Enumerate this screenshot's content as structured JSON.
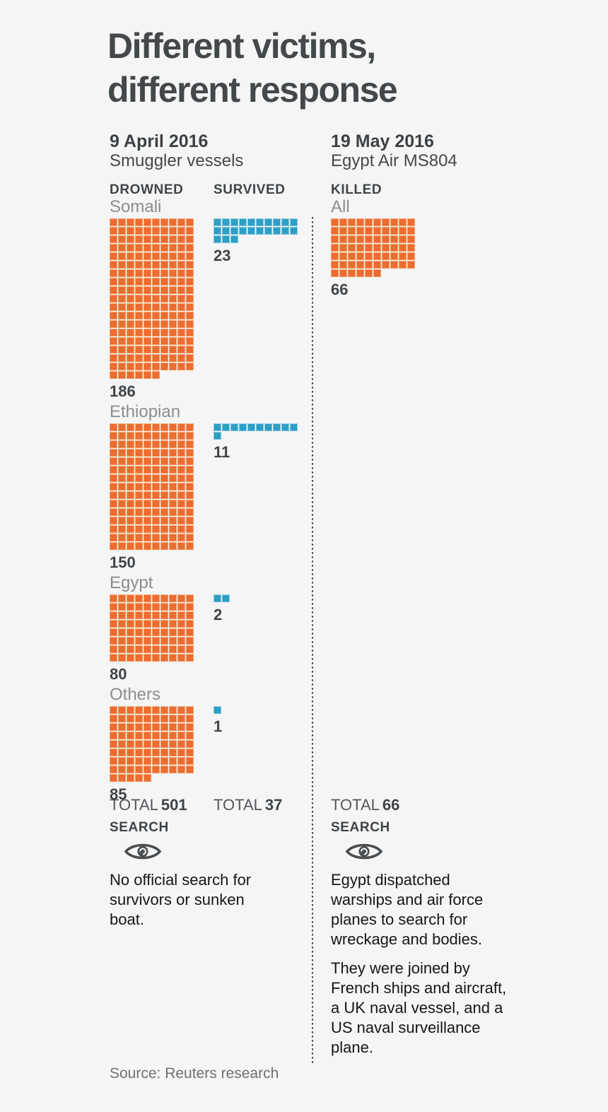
{
  "title": {
    "line1": "Different victims,",
    "line2": "different response"
  },
  "left_column": {
    "date": "9 April 2016",
    "subtitle": "Smuggler vessels"
  },
  "right_column": {
    "date": "19 May 2016",
    "subtitle": "Egypt Air MS804"
  },
  "headers": {
    "drowned": "DROWNED",
    "survived": "SURVIVED",
    "killed": "KILLED"
  },
  "groups": [
    {
      "label": "Somali",
      "drowned": 186,
      "survived": 23
    },
    {
      "label": "Ethiopian",
      "drowned": 150,
      "survived": 11
    },
    {
      "label": "Egypt",
      "drowned": 80,
      "survived": 2
    },
    {
      "label": "Others",
      "drowned": 85,
      "survived": 1
    }
  ],
  "right_group": {
    "label": "All",
    "killed": 66
  },
  "totals": {
    "label": "TOTAL",
    "drowned": "501",
    "survived": "37",
    "killed": "66"
  },
  "search": {
    "heading": "SEARCH",
    "icon": "eye-icon",
    "left_text": "No official search for survivors or sunken boat.",
    "right_paragraphs": [
      "Egypt dispatched warships and air force planes to search for wreckage and bodies.",
      "They were joined by French ships and aircraft, a UK naval vessel, and a US naval surveillance plane."
    ]
  },
  "source": "Source: Reuters research",
  "colors": {
    "drowned_fill": "#ED6C2F",
    "drowned_border": "#F29E69",
    "survived_fill": "#2D9FC6",
    "survived_border": "#82C6DE",
    "killed_fill": "#ED6C2F",
    "killed_border": "#F29E69",
    "text_dark": "#3F4447",
    "label_gray": "#8B8E90",
    "background": "#F5F5F6"
  },
  "chart_data": {
    "type": "waffle",
    "unit_value": 1,
    "columns_per_row": 10,
    "title": "Different victims, different response",
    "panels": [
      {
        "event_date": "9 April 2016",
        "event": "Smuggler vessels",
        "categories": [
          "Somali",
          "Ethiopian",
          "Egypt",
          "Others"
        ],
        "series": [
          {
            "name": "DROWNED",
            "color": "#ED6C2F",
            "values": [
              186,
              150,
              80,
              85
            ],
            "total": 501
          },
          {
            "name": "SURVIVED",
            "color": "#2D9FC6",
            "values": [
              23,
              11,
              2,
              1
            ],
            "total": 37
          }
        ],
        "search_note": "No official search for survivors or sunken boat."
      },
      {
        "event_date": "19 May 2016",
        "event": "Egypt Air MS804",
        "categories": [
          "All"
        ],
        "series": [
          {
            "name": "KILLED",
            "color": "#ED6C2F",
            "values": [
              66
            ],
            "total": 66
          }
        ],
        "search_note": "Egypt dispatched warships and air force planes to search for wreckage and bodies. They were joined by French ships and aircraft, a UK naval vessel, and a US naval surveillance plane."
      }
    ],
    "legend_position": "column headers",
    "grid": false,
    "source": "Source: Reuters research"
  }
}
